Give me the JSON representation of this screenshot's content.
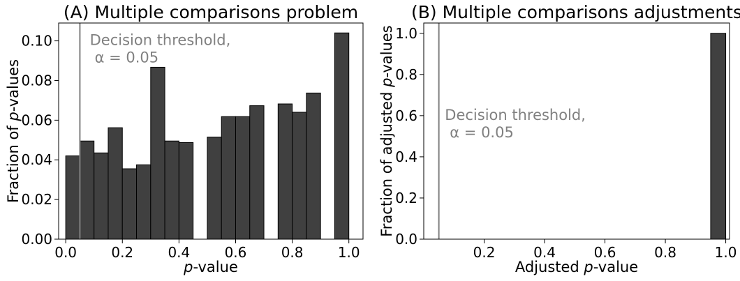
{
  "chart_data": [
    {
      "type": "bar",
      "title": "(A) Multiple comparisons problem",
      "xlabel_italic": "p",
      "xlabel_rest": "-value",
      "ylabel_pre": "Fraction of ",
      "ylabel_italic": "p",
      "ylabel_post": "-values",
      "xlim": [
        -0.025,
        1.05
      ],
      "ylim": [
        0,
        0.109
      ],
      "xticks": [
        0.0,
        0.2,
        0.4,
        0.6,
        0.8,
        1.0
      ],
      "xtick_labels": [
        "0.0",
        "0.2",
        "0.4",
        "0.6",
        "0.8",
        "1.0"
      ],
      "yticks": [
        0.0,
        0.02,
        0.04,
        0.06,
        0.08,
        0.1
      ],
      "ytick_labels": [
        "0.00",
        "0.02",
        "0.04",
        "0.06",
        "0.08",
        "0.10"
      ],
      "bin_width": 0.05,
      "bin_starts": [
        0.0,
        0.05,
        0.1,
        0.15,
        0.2,
        0.25,
        0.3,
        0.35,
        0.4,
        0.45,
        0.5,
        0.55,
        0.6,
        0.65,
        0.7,
        0.75,
        0.8,
        0.85,
        0.9,
        0.95
      ],
      "values": [
        0.042,
        0.0495,
        0.0435,
        0.0562,
        0.0355,
        0.0375,
        0.0867,
        0.0495,
        0.0487,
        0.0,
        0.0515,
        0.0618,
        0.0618,
        0.0673,
        0.0,
        0.0682,
        0.064,
        0.0737,
        0.0,
        0.104
      ],
      "threshold": 0.05,
      "annotation_line1": "Decision threshold,",
      "annotation_line2": "α = 0.05",
      "annotation_pos": [
        0.085,
        0.098
      ],
      "bar_color": "#404040",
      "edge_color": "#000000",
      "threshold_color": "#808080",
      "grid": false
    },
    {
      "type": "bar",
      "title": "(B) Multiple comparisons adjustments",
      "xlabel_pre": "Adjusted ",
      "xlabel_italic": "p",
      "xlabel_rest": "-value",
      "ylabel_pre": "Fraction of adjusted ",
      "ylabel_italic": "p",
      "ylabel_post": "-values",
      "xlim": [
        0.0,
        1.0125
      ],
      "ylim": [
        0,
        1.05
      ],
      "xticks": [
        0.2,
        0.4,
        0.6,
        0.8,
        1.0
      ],
      "xtick_labels": [
        "0.2",
        "0.4",
        "0.6",
        "0.8",
        "1.0"
      ],
      "yticks": [
        0.0,
        0.2,
        0.4,
        0.6,
        0.8,
        1.0
      ],
      "ytick_labels": [
        "0.0",
        "0.2",
        "0.4",
        "0.6",
        "0.8",
        "1.0"
      ],
      "bin_width": 0.05,
      "bin_starts": [
        0.95
      ],
      "values": [
        1.0
      ],
      "threshold": 0.05,
      "annotation_line1": "Decision threshold,",
      "annotation_line2": "α = 0.05",
      "annotation_pos": [
        0.07,
        0.58
      ],
      "bar_color": "#404040",
      "edge_color": "#000000",
      "threshold_color": "#808080",
      "grid": false
    }
  ]
}
